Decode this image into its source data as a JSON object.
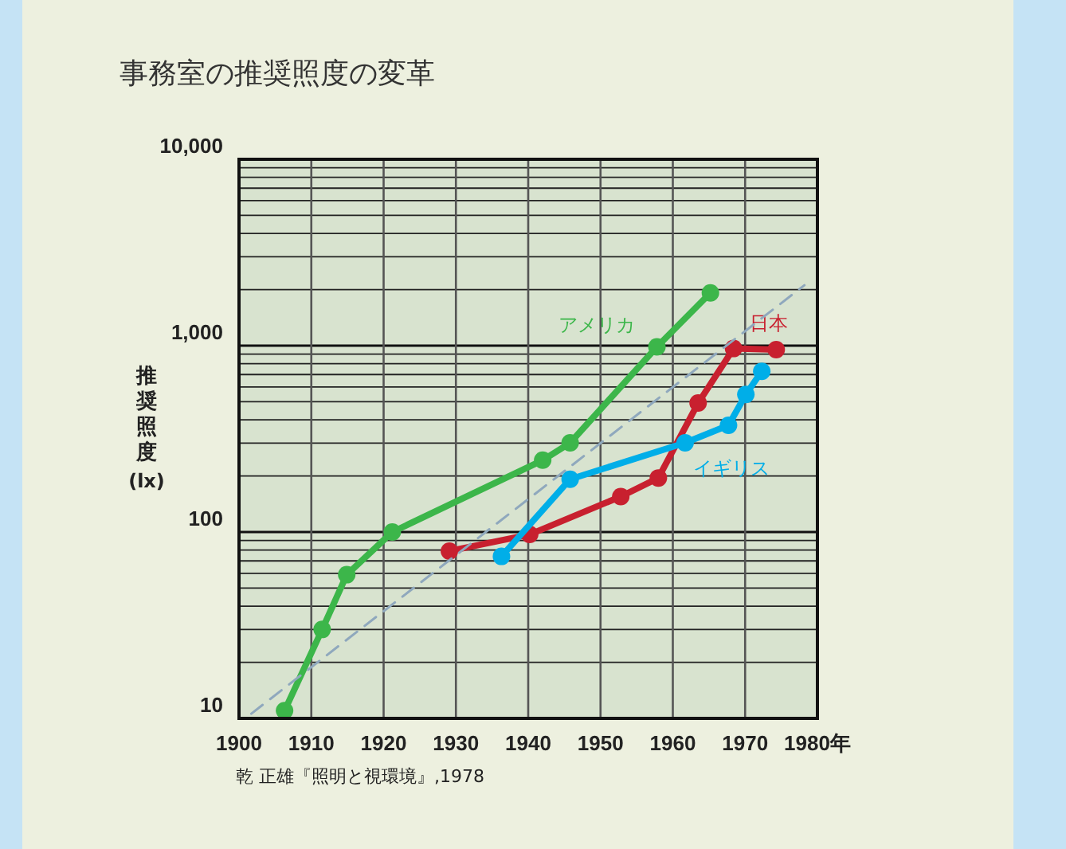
{
  "chart_data": {
    "type": "line",
    "title": "事務室の推奨照度の変革",
    "ylabel": "推奨照度(lx)",
    "log": "y",
    "grid": true,
    "marker": "circle",
    "xlim": [
      1900,
      1980
    ],
    "ylim": [
      10,
      10000
    ],
    "xticks": [
      1900,
      1910,
      1920,
      1930,
      1940,
      1950,
      1960,
      1970,
      {
        "value": 1980,
        "label": "1980年"
      }
    ],
    "yticks": [
      10,
      100,
      {
        "value": 1000,
        "label": "1,000"
      },
      {
        "value": 10000,
        "label": "10,000"
      }
    ],
    "annotations": [
      "乾 正雄『照明と視環境』,1978"
    ],
    "series": [
      {
        "name": "アメリカ",
        "color": "#3cb64a",
        "x": [
          1906.3,
          1911.5,
          1914.9,
          1921.2,
          1942,
          1945.8,
          1957.8,
          1965.2
        ],
        "values": [
          11,
          30,
          59,
          100,
          243,
          301,
          985,
          1920
        ]
      },
      {
        "name": "日本",
        "color": "#c8202f",
        "x": [
          1929.1,
          1940.2,
          1952.8,
          1958,
          1963.5,
          1968.4,
          1974.3
        ],
        "values": [
          79,
          97,
          155,
          195,
          492,
          965,
          952
        ]
      },
      {
        "name": "イギリス",
        "color": "#00aee8",
        "x": [
          1936.3,
          1945.8,
          1961.7,
          1967.7,
          1970.1,
          1972.3
        ],
        "values": [
          74,
          192,
          301,
          374,
          547,
          728
        ]
      },
      {
        "color": "#8fa8bd",
        "line_style": "dashed",
        "marker": "none",
        "x": [
          1901.7,
          1978.2
        ],
        "values": [
          10.6,
          2110
        ]
      }
    ]
  }
}
